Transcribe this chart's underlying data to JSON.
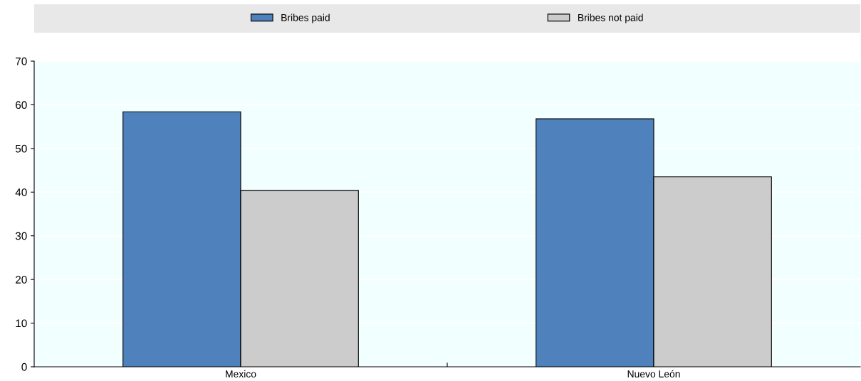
{
  "chart_data": {
    "type": "bar",
    "categories": [
      "Mexico",
      "Nuevo León"
    ],
    "series": [
      {
        "name": "Bribes paid",
        "color": "#4f81bd",
        "values": [
          58.4,
          56.8
        ]
      },
      {
        "name": "Bribes not paid",
        "color": "#cccccc",
        "values": [
          40.4,
          43.5
        ]
      }
    ],
    "ylim": [
      0,
      70
    ],
    "yticks": [
      0,
      10,
      20,
      30,
      40,
      50,
      60,
      70
    ],
    "grid": "y",
    "legend": "top"
  }
}
